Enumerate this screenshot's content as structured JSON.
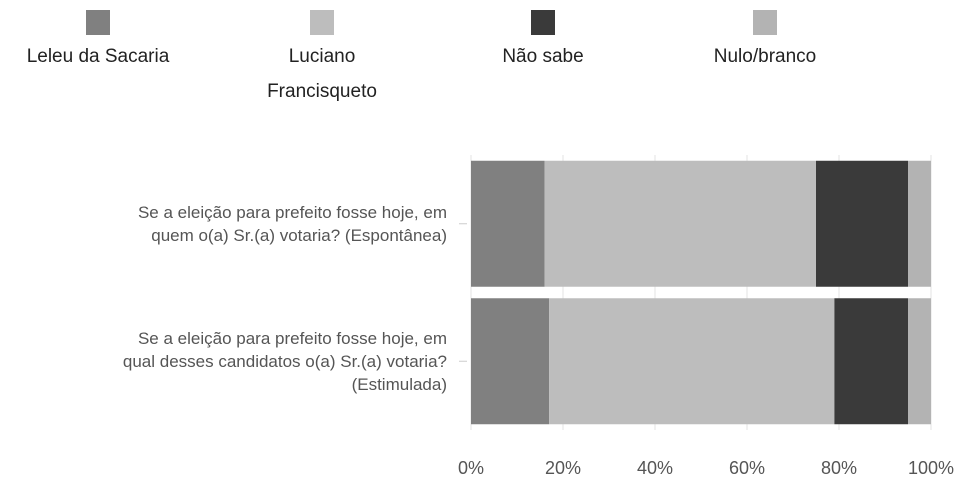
{
  "chart_data": {
    "type": "stacked-barh",
    "categories": [
      "Se a eleição para prefeito fosse hoje, em\nquem o(a) Sr.(a) votaria? (Espontânea)",
      "Se a eleição para prefeito fosse hoje, em\nqual desses candidatos o(a) Sr.(a) votaria?\n(Estimulada)"
    ],
    "series": [
      {
        "name": "Leleu da Sacaria",
        "color": "#808080",
        "values": [
          16,
          17
        ]
      },
      {
        "name": "Luciano\nFrancisqueto",
        "color": "#bdbdbd",
        "values": [
          59,
          62
        ]
      },
      {
        "name": "Não sabe",
        "color": "#3a3a3a",
        "values": [
          20,
          16
        ]
      },
      {
        "name": "Nulo/branco",
        "color": "#b3b3b3",
        "values": [
          5,
          5
        ]
      }
    ],
    "xlim": [
      0,
      100
    ],
    "xticks": [
      {
        "value": 0,
        "label": "0%"
      },
      {
        "value": 20,
        "label": "20%"
      },
      {
        "value": 40,
        "label": "40%"
      },
      {
        "value": 60,
        "label": "60%"
      },
      {
        "value": 80,
        "label": "80%"
      },
      {
        "value": 100,
        "label": "100%"
      }
    ],
    "grid": true,
    "legend": "top"
  }
}
